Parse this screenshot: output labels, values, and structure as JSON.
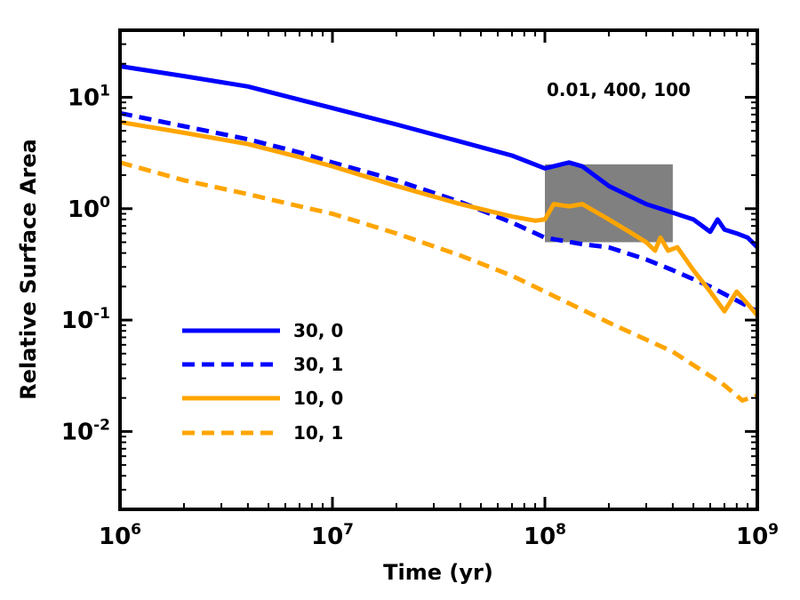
{
  "chart_data": {
    "type": "line",
    "xscale": "log",
    "yscale": "log",
    "xlim": [
      1000000,
      1000000000
    ],
    "ylim": [
      0.002,
      40
    ],
    "xlabel": "Time (yr)",
    "ylabel": "Relative Surface Area",
    "annotation": "0.01, 400, 100",
    "x_ticks": [
      {
        "base": "10",
        "exp": "6",
        "value": 1000000
      },
      {
        "base": "10",
        "exp": "7",
        "value": 10000000
      },
      {
        "base": "10",
        "exp": "8",
        "value": 100000000
      },
      {
        "base": "10",
        "exp": "9",
        "value": 1000000000
      }
    ],
    "y_ticks": [
      {
        "base": "10",
        "exp": "-2",
        "value": 0.01
      },
      {
        "base": "10",
        "exp": "-1",
        "value": 0.1
      },
      {
        "base": "10",
        "exp": "0",
        "value": 1
      },
      {
        "base": "10",
        "exp": "1",
        "value": 10
      }
    ],
    "shaded_region": {
      "x": [
        100000000,
        400000000
      ],
      "y": [
        0.5,
        2.5
      ],
      "color": "#808080"
    },
    "legend_position": "lower-left",
    "series": [
      {
        "name": "30, 0",
        "color": "#0000ff",
        "dash": "solid",
        "x": [
          1000000,
          2000000,
          4000000,
          7000000,
          10000000,
          20000000,
          40000000,
          70000000,
          100000000,
          130000000,
          150000000,
          200000000,
          300000000,
          400000000,
          500000000,
          600000000,
          650000000,
          700000000,
          800000000,
          900000000,
          1000000000
        ],
        "y": [
          19,
          15.5,
          12.5,
          9.5,
          8,
          5.7,
          4,
          3,
          2.3,
          2.6,
          2.4,
          1.6,
          1.1,
          0.92,
          0.8,
          0.62,
          0.8,
          0.65,
          0.6,
          0.55,
          0.45
        ]
      },
      {
        "name": "30, 1",
        "color": "#0000ff",
        "dash": "dashed",
        "x": [
          1000000,
          2000000,
          4000000,
          7000000,
          10000000,
          20000000,
          40000000,
          70000000,
          100000000,
          150000000,
          200000000,
          300000000,
          400000000,
          600000000,
          800000000,
          1000000000
        ],
        "y": [
          7.2,
          5.5,
          4.2,
          3.2,
          2.6,
          1.8,
          1.15,
          0.75,
          0.55,
          0.48,
          0.45,
          0.35,
          0.28,
          0.2,
          0.15,
          0.12
        ]
      },
      {
        "name": "10, 0",
        "color": "#ffa500",
        "dash": "solid",
        "x": [
          1000000,
          2000000,
          4000000,
          7000000,
          10000000,
          20000000,
          40000000,
          70000000,
          90000000,
          100000000,
          110000000,
          130000000,
          150000000,
          200000000,
          250000000,
          300000000,
          330000000,
          350000000,
          380000000,
          420000000,
          500000000,
          600000000,
          700000000,
          800000000,
          900000000,
          1000000000
        ],
        "y": [
          6,
          4.8,
          3.8,
          2.9,
          2.4,
          1.6,
          1.1,
          0.85,
          0.78,
          0.8,
          1.1,
          1.05,
          1.1,
          0.8,
          0.62,
          0.5,
          0.42,
          0.55,
          0.42,
          0.45,
          0.28,
          0.18,
          0.12,
          0.18,
          0.14,
          0.11
        ]
      },
      {
        "name": "10, 1",
        "color": "#ffa500",
        "dash": "dashed",
        "x": [
          1000000,
          2000000,
          4000000,
          7000000,
          10000000,
          20000000,
          40000000,
          70000000,
          100000000,
          200000000,
          400000000,
          700000000,
          850000000,
          1000000000
        ],
        "y": [
          2.6,
          1.8,
          1.35,
          1.05,
          0.9,
          0.6,
          0.38,
          0.25,
          0.18,
          0.095,
          0.052,
          0.026,
          0.019,
          0.021
        ]
      }
    ]
  }
}
